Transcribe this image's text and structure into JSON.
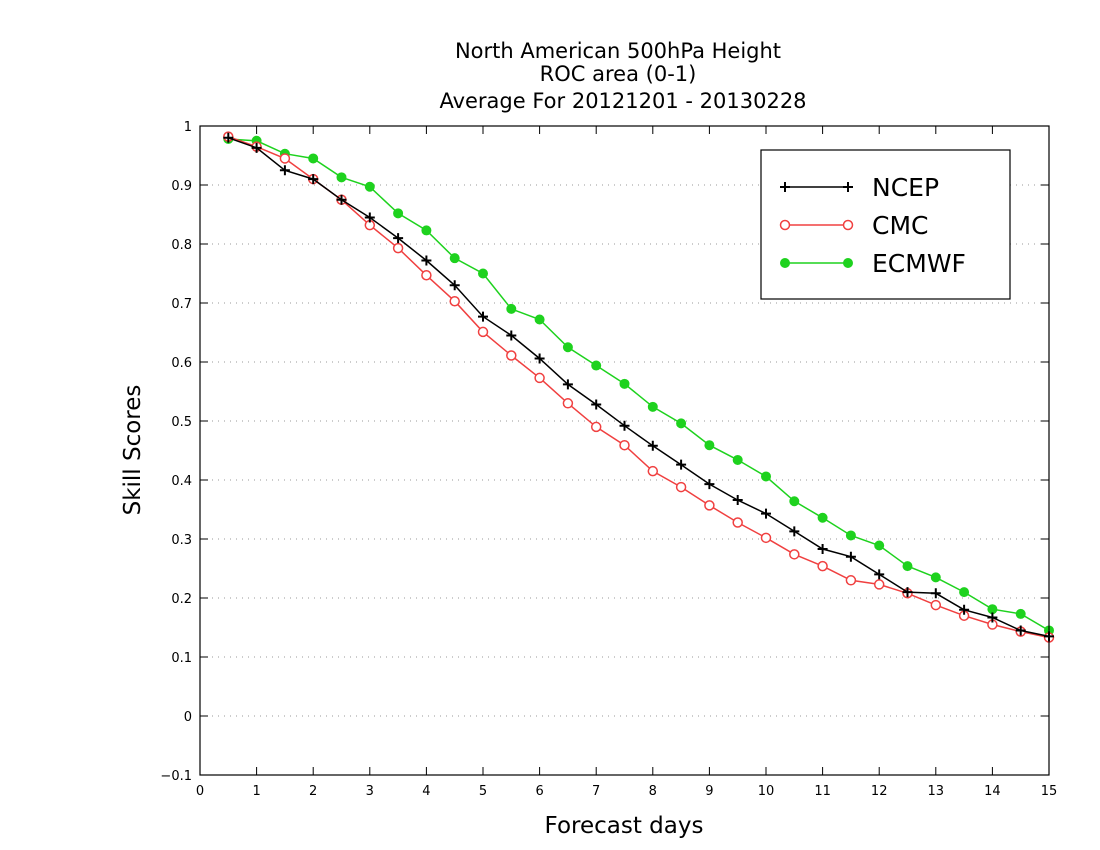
{
  "chart_data": {
    "type": "line",
    "title": [
      "North American 500hPa Height",
      "ROC area (0-1)",
      "Average For 20121201 - 20130228"
    ],
    "xlabel": "Forecast days",
    "ylabel": "Skill Scores",
    "xlim": [
      0,
      15
    ],
    "ylim": [
      -0.1,
      1
    ],
    "xticks": [
      0,
      1,
      2,
      3,
      4,
      5,
      6,
      7,
      8,
      9,
      10,
      11,
      12,
      13,
      14,
      15
    ],
    "yticks": [
      -0.1,
      0,
      0.1,
      0.2,
      0.3,
      0.4,
      0.5,
      0.6,
      0.7,
      0.8,
      0.9,
      1
    ],
    "ytick_labels": [
      "−0.1",
      "0",
      "0.1",
      "0.2",
      "0.3",
      "0.4",
      "0.5",
      "0.6",
      "0.7",
      "0.8",
      "0.9",
      "1"
    ],
    "grid": "horizontal dotted",
    "legend_position": "top-right",
    "x": [
      0.5,
      1,
      1.5,
      2,
      2.5,
      3,
      3.5,
      4,
      4.5,
      5,
      5.5,
      6,
      6.5,
      7,
      7.5,
      8,
      8.5,
      9,
      9.5,
      10,
      10.5,
      11,
      11.5,
      12,
      12.5,
      13,
      13.5,
      14,
      14.5,
      15
    ],
    "series": [
      {
        "name": "NCEP",
        "color": "#000000",
        "marker": "plus",
        "values": [
          0.98,
          0.963,
          0.925,
          0.91,
          0.875,
          0.845,
          0.81,
          0.772,
          0.73,
          0.677,
          0.645,
          0.606,
          0.562,
          0.528,
          0.492,
          0.458,
          0.426,
          0.393,
          0.366,
          0.343,
          0.313,
          0.283,
          0.27,
          0.24,
          0.21,
          0.208,
          0.18,
          0.167,
          0.145,
          0.135
        ]
      },
      {
        "name": "CMC",
        "color": "#f04040",
        "marker": "open-circle",
        "values": [
          0.982,
          0.965,
          0.945,
          0.91,
          0.875,
          0.832,
          0.793,
          0.747,
          0.703,
          0.651,
          0.611,
          0.573,
          0.53,
          0.49,
          0.459,
          0.415,
          0.388,
          0.357,
          0.328,
          0.302,
          0.274,
          0.254,
          0.23,
          0.223,
          0.208,
          0.188,
          0.17,
          0.155,
          0.143,
          0.133
        ]
      },
      {
        "name": "ECMWF",
        "color": "#1ed21e",
        "marker": "filled-circle",
        "values": [
          0.978,
          0.975,
          0.953,
          0.945,
          0.913,
          0.897,
          0.852,
          0.823,
          0.776,
          0.75,
          0.69,
          0.672,
          0.625,
          0.594,
          0.563,
          0.524,
          0.496,
          0.459,
          0.434,
          0.406,
          0.364,
          0.336,
          0.306,
          0.289,
          0.254,
          0.235,
          0.21,
          0.181,
          0.173,
          0.145
        ]
      }
    ]
  }
}
